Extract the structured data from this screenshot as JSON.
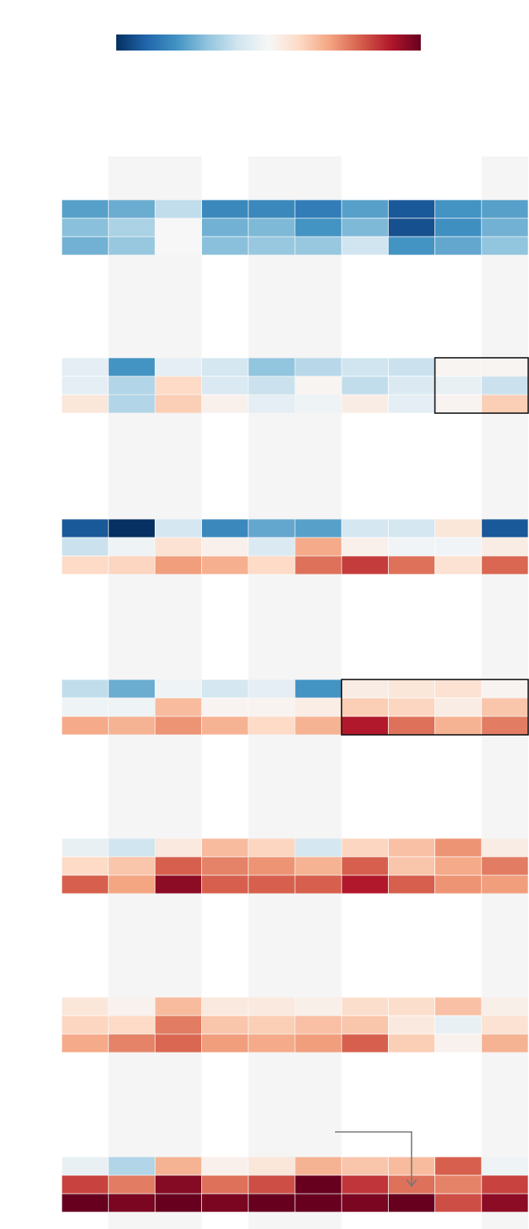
{
  "chart_data": {
    "type": "heatmap",
    "title": "",
    "xlabel": "",
    "ylabel": "",
    "columns": 10,
    "rows_per_group": 3,
    "color_scale": {
      "palette": "RdBu_r",
      "min": -1,
      "max": 1,
      "stops": [
        "#053061",
        "#2166ac",
        "#4393c3",
        "#92c5de",
        "#d1e5f0",
        "#f7f7f7",
        "#fddbc7",
        "#f4a582",
        "#d6604d",
        "#b2182b",
        "#67001f"
      ]
    },
    "shaded_columns": [
      1,
      2,
      4,
      5,
      9
    ],
    "groups": [
      {
        "values": [
          [
            -0.55,
            -0.5,
            -0.25,
            -0.65,
            -0.65,
            -0.7,
            -0.55,
            -0.85,
            -0.6,
            -0.55
          ],
          [
            -0.42,
            -0.32,
            0.0,
            -0.48,
            -0.45,
            -0.6,
            -0.45,
            -0.88,
            -0.62,
            -0.48
          ],
          [
            -0.48,
            -0.38,
            0.0,
            -0.42,
            -0.38,
            -0.38,
            -0.2,
            -0.6,
            -0.52,
            -0.4
          ]
        ]
      },
      {
        "values": [
          [
            -0.1,
            -0.6,
            -0.1,
            -0.18,
            -0.4,
            -0.28,
            -0.2,
            -0.22,
            0.02,
            0.02
          ],
          [
            -0.1,
            -0.3,
            0.2,
            -0.15,
            -0.22,
            0.02,
            -0.25,
            -0.15,
            -0.08,
            -0.22
          ],
          [
            0.12,
            -0.3,
            0.25,
            0.05,
            -0.1,
            -0.05,
            0.08,
            -0.1,
            0.03,
            0.25
          ]
        ]
      },
      {
        "values": [
          [
            -0.85,
            -1.0,
            -0.18,
            -0.65,
            -0.52,
            -0.55,
            -0.18,
            -0.18,
            0.12,
            -0.85
          ],
          [
            -0.22,
            -0.05,
            0.15,
            0.05,
            -0.15,
            0.38,
            0.05,
            -0.03,
            -0.03,
            0.08
          ],
          [
            0.2,
            0.22,
            0.42,
            0.36,
            0.2,
            0.55,
            0.7,
            0.55,
            0.15,
            0.58
          ]
        ]
      },
      {
        "values": [
          [
            -0.25,
            -0.5,
            -0.05,
            -0.18,
            -0.1,
            -0.6,
            0.08,
            0.12,
            0.15,
            0.03
          ],
          [
            -0.05,
            -0.05,
            0.32,
            0.03,
            0.03,
            0.07,
            0.25,
            0.22,
            0.08,
            0.28
          ],
          [
            0.38,
            0.35,
            0.45,
            0.35,
            0.2,
            0.35,
            0.8,
            0.55,
            0.35,
            0.52
          ]
        ]
      },
      {
        "values": [
          [
            -0.08,
            -0.2,
            0.1,
            0.32,
            0.22,
            -0.18,
            0.22,
            0.3,
            0.45,
            0.08
          ],
          [
            0.2,
            0.28,
            0.6,
            0.5,
            0.45,
            0.35,
            0.6,
            0.28,
            0.38,
            0.52
          ],
          [
            0.6,
            0.4,
            0.9,
            0.6,
            0.6,
            0.6,
            0.8,
            0.6,
            0.45,
            0.42
          ]
        ]
      },
      {
        "values": [
          [
            0.12,
            0.04,
            0.32,
            0.1,
            0.1,
            0.06,
            0.18,
            0.18,
            0.3,
            0.06
          ],
          [
            0.22,
            0.2,
            0.52,
            0.28,
            0.25,
            0.3,
            0.28,
            0.1,
            -0.08,
            0.15
          ],
          [
            0.38,
            0.5,
            0.58,
            0.42,
            0.38,
            0.42,
            0.6,
            0.25,
            0.04,
            0.35
          ]
        ]
      },
      {
        "values": [
          [
            -0.08,
            -0.3,
            0.35,
            0.05,
            0.12,
            0.35,
            0.28,
            0.32,
            0.6,
            -0.05
          ],
          [
            0.68,
            0.52,
            0.92,
            0.55,
            0.65,
            1.0,
            0.72,
            0.55,
            0.5,
            0.68
          ],
          [
            1.0,
            0.95,
            1.0,
            0.95,
            1.0,
            1.0,
            0.95,
            1.0,
            0.65,
            0.9
          ]
        ]
      }
    ],
    "highlight_boxes": [
      {
        "group": 1,
        "col_start": 8,
        "col_end": 9,
        "row_start": 0,
        "row_end": 2
      },
      {
        "group": 3,
        "col_start": 6,
        "col_end": 9,
        "row_start": 0,
        "row_end": 2
      }
    ],
    "arrow": {
      "group": 6,
      "col": 7,
      "row": 1
    }
  }
}
